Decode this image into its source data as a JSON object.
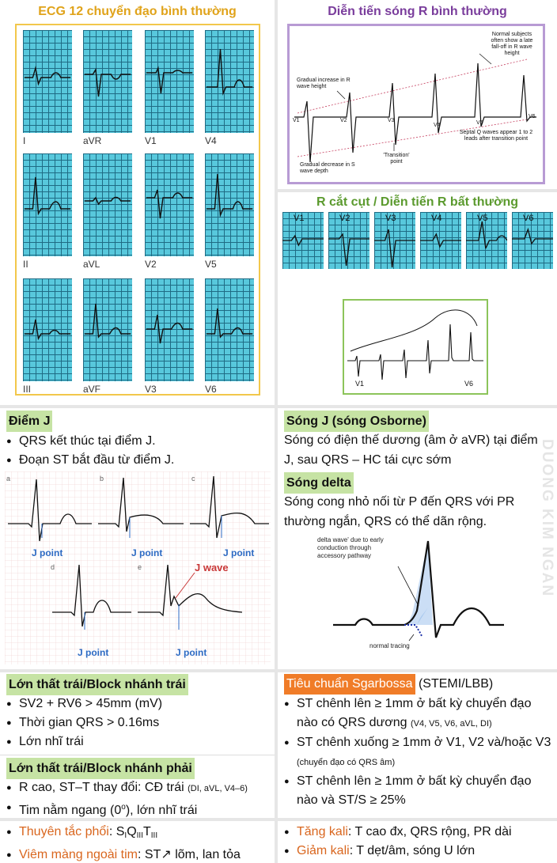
{
  "ecg12": {
    "title": "ECG 12 chuyển đạo bình thường",
    "leads": [
      "I",
      "aVR",
      "V1",
      "V4",
      "II",
      "aVL",
      "V2",
      "V5",
      "III",
      "aVF",
      "V3",
      "V6"
    ]
  },
  "rprog": {
    "title": "Diễn tiến sóng R bình thường",
    "ann_gradual_increase": "Gradual increase in R wave height",
    "ann_normal_subjects": "Normal subjects often show a late fall-off in R wave height",
    "ann_transition": "'Transition' point",
    "ann_septal": "Septal Q waves appear 1 to 2 leads after transition point",
    "ann_gradual_decrease": "Gradual decrease in S wave depth",
    "leads": [
      "V1",
      "V2",
      "V3",
      "V4",
      "V5",
      "V6"
    ]
  },
  "abnormal": {
    "title": "R cắt cụt / Diễn tiến R bất thường",
    "leads": [
      "V1",
      "V2",
      "V3",
      "V4",
      "V5",
      "V6"
    ],
    "v1": "V1",
    "v6": "V6"
  },
  "jpoint": {
    "title": "Điểm J",
    "bullets": [
      "QRS kết thúc tại điểm J.",
      "Đoạn ST bắt đầu từ điểm J."
    ],
    "panel_letters": [
      "a",
      "b",
      "c",
      "d",
      "e"
    ],
    "jpoint_label": "J point",
    "jwave_label": "J wave"
  },
  "jwave": {
    "title": "Sóng J (sóng Osborne)",
    "text": "Sóng có điện thế dương (âm ở aVR) tại điểm J, sau QRS – HC tái cực sớm"
  },
  "delta": {
    "title": "Sóng delta",
    "text": "Sóng cong nhỏ nối từ P đến QRS với PR thường ngắn, QRS có thể dãn rộng.",
    "ann_delta": "delta wave' due to early conduction through accessory pathway",
    "ann_normal": "normal tracing"
  },
  "watermark": "DUONG KIM NGAN",
  "lvh_lbbb": {
    "title": "Lớn thất trái/Block nhánh trái",
    "bullets": [
      "SV2 + RV6 > 45mm (mV)",
      "Thời gian QRS > 0.16ms",
      "Lớn nhĩ trái"
    ]
  },
  "rbbb": {
    "title": "Lớn thất trái/Block nhánh phải",
    "b1_main": "R cao, ST–T thay đổi: CĐ trái",
    "b1_small": "(DI, aVL, V4–6)",
    "b2_main": "Tim nằm ngang (0",
    "b2_sup": "o",
    "b2_end": "), lớn nhĩ trái"
  },
  "sgarbossa": {
    "title": "Tiêu chuẩn Sgarbossa",
    "title_suffix": "(STEMI/LBB)",
    "b1_main": "ST chênh lên ≥ 1mm ở bất kỳ chuyển đạo nào có QRS dương",
    "b1_small": "(V4, V5, V6, aVL, DI)",
    "b2_main": "ST chênh xuống ≥ 1mm  ở V1, V2 và/hoặc V3",
    "b2_small": "(chuyển đạo có QRS âm)",
    "b3": "ST chênh lên ≥ 1mm ở bất kỳ chuyển đạo nào và ST/S ≥ 25%"
  },
  "bottom_left": {
    "pe_label": "Thuyên tắc phổi",
    "pe_s": "S",
    "pe_sub1": "I",
    "pe_q": "Q",
    "pe_sub2": "III",
    "pe_t": "T",
    "pe_sub3": "III",
    "peri_label": "Viêm màng ngoài tim",
    "peri_text": ": ST↗ lõm, lan tỏa"
  },
  "bottom_right": {
    "hyperk_label": "Tăng kali",
    "hyperk_text": ": T cao đx, QRS rộng, PR dài",
    "hypok_label": "Giảm kali",
    "hypok_text": ": T dẹt/âm, sóng U lớn"
  }
}
